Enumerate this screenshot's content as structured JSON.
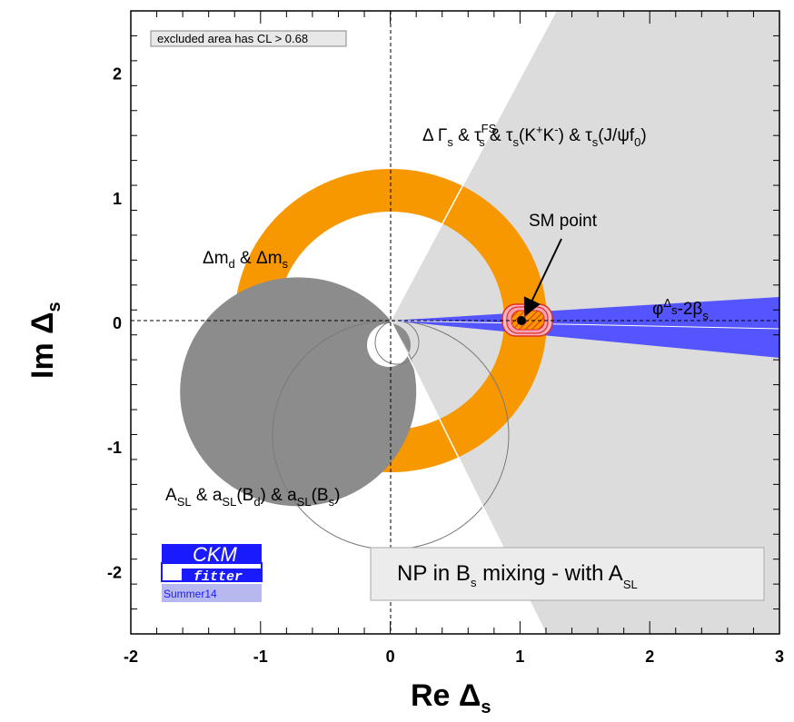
{
  "chart_data": {
    "type": "scatter",
    "title": "",
    "xlabel": "Re Δs",
    "ylabel": "Im Δs",
    "xlim": [
      -2,
      3
    ],
    "ylim": [
      -2.5,
      2.5
    ],
    "x_ticks": [
      -2,
      -1,
      0,
      1,
      2,
      3
    ],
    "y_ticks": [
      -2,
      -1,
      0,
      1,
      2
    ],
    "x_tick_labels": [
      "-2",
      "-1",
      "0",
      "1",
      "2",
      "3"
    ],
    "y_tick_labels": [
      "-2",
      "-1",
      "0",
      "1",
      "2"
    ],
    "reference_lines": {
      "x": 0,
      "y": 0,
      "style": "dashed"
    },
    "sm_point": {
      "x": 1,
      "y": 0,
      "label": "SM point"
    },
    "constraints": [
      {
        "name": "ΔΓs & τs^FS & τs(K+K−) & τs(J/ψf0)",
        "shape": "wedge",
        "color": "#dcdcdc",
        "angle_deg_min": -60,
        "angle_deg_max": 60
      },
      {
        "name": "Δmd & Δms",
        "shape": "ring",
        "color": "#f79800",
        "center": [
          0,
          0
        ],
        "r_inner": 0.93,
        "r_outer": 1.22
      },
      {
        "name": "ASL & aSL(Bd) & aSL(Bs)",
        "shape": "disk",
        "color": "#8c8c8c",
        "center": [
          0,
          -0.9
        ],
        "radius": 0.9
      },
      {
        "name": "φΔs−2βs",
        "shape": "wedge",
        "color": "#5555ff",
        "angle_deg_min": -4.5,
        "angle_deg_max": 2
      }
    ],
    "fit_region": {
      "center": [
        1.08,
        0.02
      ],
      "color": "#e0301e",
      "levels": [
        "68%",
        "95%",
        "99.7%"
      ]
    },
    "annotations": {
      "cl_note": "excluded area has CL > 0.68",
      "legend_box": "NP in Bs mixing - with ASL"
    },
    "grid": false
  },
  "labels": {
    "x_axis_main": "Re Δ",
    "x_axis_sub": "s",
    "y_axis_main": "Im Δ",
    "y_axis_sub": "s",
    "cl_note": "excluded area has CL > 0.68",
    "sm_point": "SM point",
    "dm_a": "Δm",
    "dm_b": "d",
    "dm_c": " & Δm",
    "dm_d": "s",
    "asl_a": "A",
    "asl_b": "SL",
    "asl_c": " & a",
    "asl_d": "SL",
    "asl_e": "(B",
    "asl_f": "d",
    "asl_g": ") & a",
    "asl_h": "SL",
    "asl_i": "(B",
    "asl_j": "s",
    "asl_k": ")",
    "dg_a": "Δ Γ",
    "dg_b": "s",
    "dg_c": " & τ",
    "dg_d": "FS",
    "dg_e": "s",
    "dg_f": " & τ",
    "dg_g": "s",
    "dg_h": "(K",
    "dg_i": "+",
    "dg_j": "K",
    "dg_k": "-",
    "dg_l": ") & τ",
    "dg_m": "s",
    "dg_n": "(J/ψf",
    "dg_o": "0",
    "dg_p": ")",
    "phi_a": "φ",
    "phi_b": "Δ",
    "phi_c": "s",
    "phi_d": "-2β",
    "phi_e": "s",
    "leg_a": "NP in B",
    "leg_b": "s",
    "leg_c": " mixing - with A",
    "leg_d": "SL"
  },
  "logo": {
    "title": "CKM",
    "subtitle": "fitter",
    "season": "Summer14"
  },
  "colors": {
    "wedge_grey": "#dcdcdc",
    "ring_orange": "#f79800",
    "asl_grey": "#8c8c8c",
    "phi_blue": "#5555ff",
    "fit_red": "#e0301e",
    "logo_blue": "#1a1aff"
  }
}
